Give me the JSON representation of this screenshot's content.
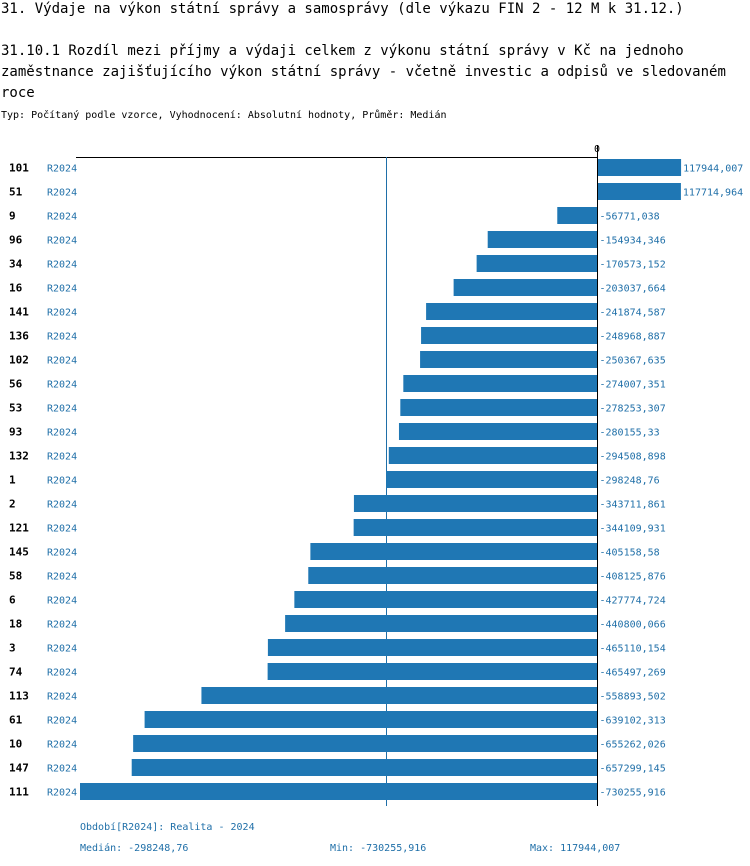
{
  "header": {
    "title": "31. Výdaje na výkon státní správy a samosprávy (dle výkazu FIN 2 - 12 M k 31.12.)",
    "subtitle": "31.10.1 Rozdíl mezi příjmy a výdaji celkem z výkonu státní správy v Kč na jednoho zaměstnance zajišťujícího výkon státní správy - včetně investic a odpisů ve sledovaném roce",
    "type_line": "Typ: Počítaný podle vzorce, Vyhodnocení: Absolutní hodnoty, Průměr: Medián"
  },
  "chart_data": {
    "type": "bar",
    "orientation": "horizontal",
    "zero_label": "0",
    "period_label": "R2024",
    "categories": [
      "101",
      "51",
      "9",
      "96",
      "34",
      "16",
      "141",
      "136",
      "102",
      "56",
      "53",
      "93",
      "132",
      "1",
      "2",
      "121",
      "145",
      "58",
      "6",
      "18",
      "3",
      "74",
      "113",
      "61",
      "10",
      "147",
      "111"
    ],
    "values": [
      117944.007,
      117714.964,
      -56771.038,
      -154934.346,
      -170573.152,
      -203037.664,
      -241874.587,
      -248968.887,
      -250367.635,
      -274007.351,
      -278253.307,
      -280155.33,
      -294508.898,
      -298248.76,
      -343711.861,
      -344109.931,
      -405158.58,
      -408125.876,
      -427774.724,
      -440800.066,
      -465110.154,
      -465497.269,
      -558893.502,
      -639102.313,
      -655262.026,
      -657299.145,
      -730255.916
    ],
    "value_labels": [
      "117944,007",
      "117714,964",
      "-56771,038",
      "-154934,346",
      "-170573,152",
      "-203037,664",
      "-241874,587",
      "-248968,887",
      "-250367,635",
      "-274007,351",
      "-278253,307",
      "-280155,33",
      "-294508,898",
      "-298248,76",
      "-343711,861",
      "-344109,931",
      "-405158,58",
      "-408125,876",
      "-427774,724",
      "-440800,066",
      "-465110,154",
      "-465497,269",
      "-558893,502",
      "-639102,313",
      "-655262,026",
      "-657299,145",
      "-730255,916"
    ],
    "median": -298248.76,
    "xlim": [
      -730255.916,
      117944.007
    ],
    "bar_color": "#1f77b4"
  },
  "footer": {
    "period": "Období[R2024]: Realita - 2024",
    "median": "Medián: -298248,76",
    "min": "Min: -730255,916",
    "max": "Max: 117944,007"
  }
}
